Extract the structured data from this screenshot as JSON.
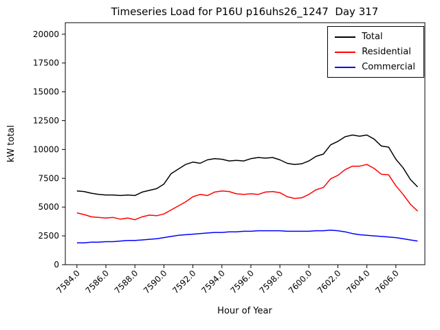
{
  "chart_data": {
    "type": "line",
    "title": "Timeseries Load for P16U p16uhs26_1247  Day 317",
    "xlabel": "Hour of Year",
    "ylabel": "kW total",
    "grid": false,
    "legend_position": "upper right",
    "xlim": [
      7583.2,
      7608.0
    ],
    "ylim": [
      0,
      21000
    ],
    "xticks": [
      7584,
      7586,
      7588,
      7590,
      7592,
      7594,
      7596,
      7598,
      7600,
      7602,
      7604,
      7606
    ],
    "yticks": [
      0,
      2500,
      5000,
      7500,
      10000,
      12500,
      15000,
      17500,
      20000
    ],
    "x": [
      7584.0,
      7584.5,
      7585.0,
      7585.5,
      7586.0,
      7586.5,
      7587.0,
      7587.5,
      7588.0,
      7588.5,
      7589.0,
      7589.5,
      7590.0,
      7590.5,
      7591.0,
      7591.5,
      7592.0,
      7592.5,
      7593.0,
      7593.5,
      7594.0,
      7594.5,
      7595.0,
      7595.5,
      7596.0,
      7596.5,
      7597.0,
      7597.5,
      7598.0,
      7598.5,
      7599.0,
      7599.5,
      7600.0,
      7600.5,
      7601.0,
      7601.5,
      7602.0,
      7602.5,
      7603.0,
      7603.5,
      7604.0,
      7604.5,
      7605.0,
      7605.5,
      7606.0,
      7606.5,
      7607.0,
      7607.5
    ],
    "series": [
      {
        "name": "Total",
        "color": "#000000",
        "values": [
          6400,
          6350,
          6200,
          6100,
          6050,
          6050,
          6000,
          6050,
          6000,
          6300,
          6450,
          6600,
          7000,
          7900,
          8300,
          8700,
          8900,
          8800,
          9100,
          9200,
          9150,
          9000,
          9050,
          9000,
          9200,
          9300,
          9250,
          9300,
          9100,
          8800,
          8700,
          8750,
          9000,
          9400,
          9600,
          10400,
          10700,
          11100,
          11250,
          11150,
          11250,
          10900,
          10300,
          10200,
          9150,
          8400,
          7400,
          6750
        ]
      },
      {
        "name": "Residential",
        "color": "#ff0000",
        "values": [
          4500,
          4350,
          4150,
          4100,
          4050,
          4100,
          3950,
          4050,
          3900,
          4150,
          4300,
          4250,
          4400,
          4750,
          5100,
          5450,
          5900,
          6100,
          6000,
          6300,
          6400,
          6350,
          6150,
          6100,
          6150,
          6100,
          6300,
          6350,
          6250,
          5900,
          5750,
          5800,
          6100,
          6500,
          6700,
          7450,
          7750,
          8250,
          8550,
          8550,
          8700,
          8350,
          7850,
          7800,
          6850,
          6100,
          5250,
          4650
        ]
      },
      {
        "name": "Commercial",
        "color": "#0000ff",
        "values": [
          1900,
          1900,
          1950,
          1950,
          2000,
          2000,
          2050,
          2100,
          2100,
          2150,
          2200,
          2250,
          2350,
          2450,
          2550,
          2600,
          2650,
          2700,
          2750,
          2800,
          2800,
          2850,
          2850,
          2900,
          2900,
          2950,
          2950,
          2950,
          2950,
          2900,
          2900,
          2900,
          2900,
          2950,
          2950,
          3000,
          2950,
          2850,
          2700,
          2600,
          2550,
          2500,
          2450,
          2400,
          2350,
          2250,
          2150,
          2050
        ]
      }
    ]
  }
}
